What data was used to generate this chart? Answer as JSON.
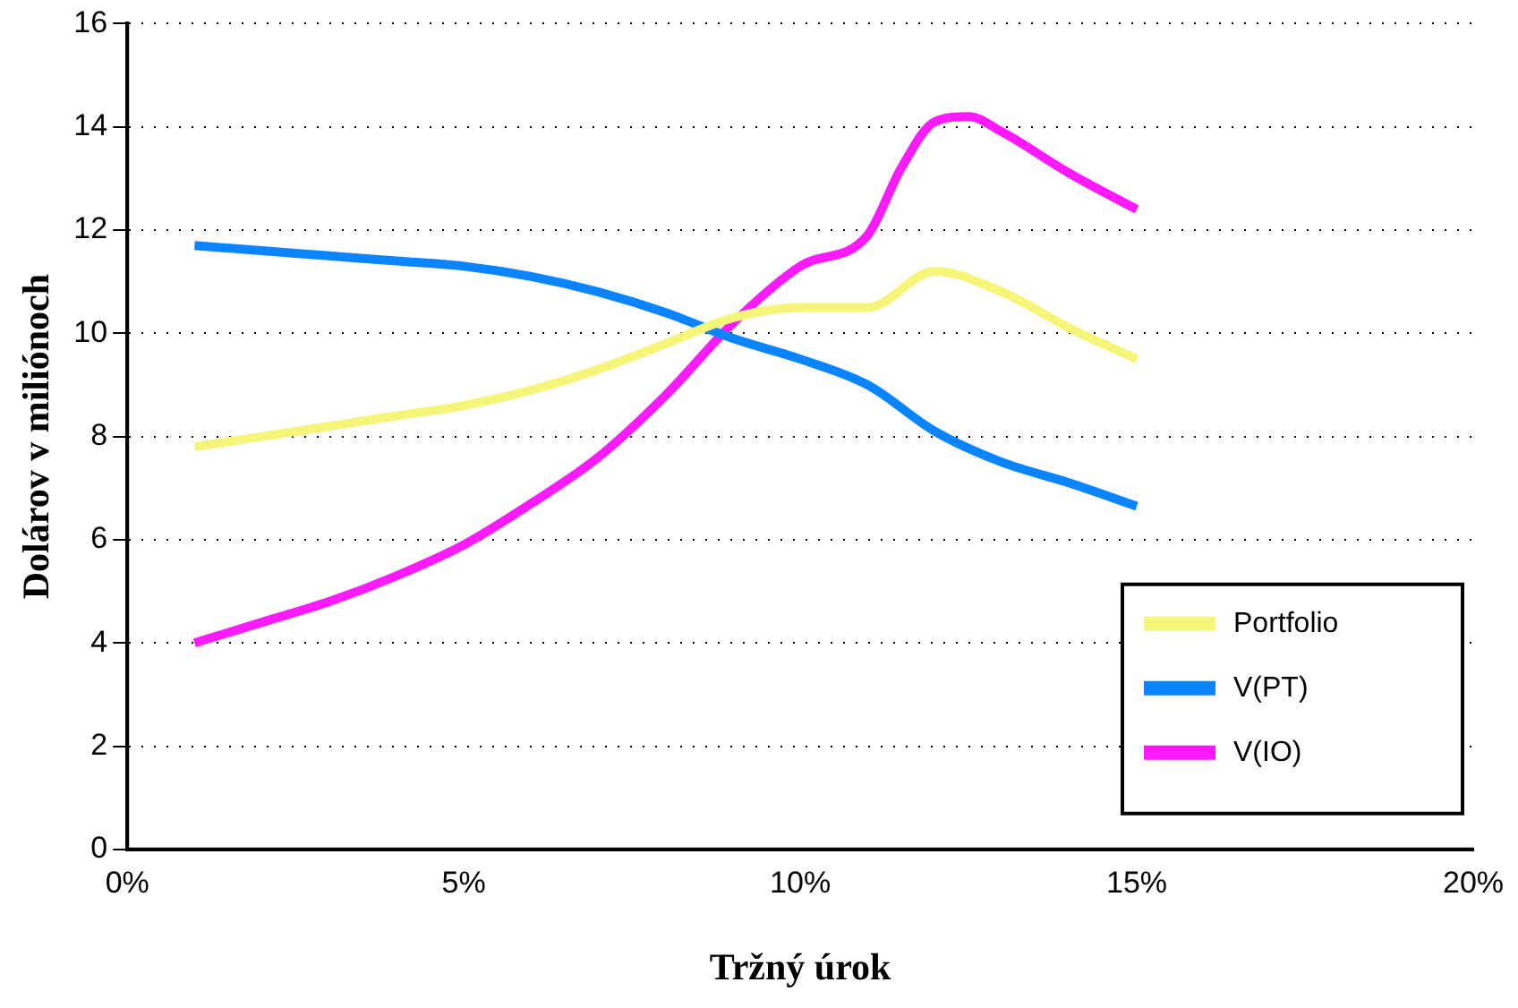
{
  "chart_data": {
    "type": "line",
    "xlabel": "Tržný úrok",
    "ylabel": "Dolárov v miliónoch",
    "xlim": [
      0,
      20
    ],
    "xticks": [
      {
        "value": 0,
        "label": "0%"
      },
      {
        "value": 5,
        "label": "5%"
      },
      {
        "value": 10,
        "label": "10%"
      },
      {
        "value": 15,
        "label": "15%"
      },
      {
        "value": 20,
        "label": "20%"
      }
    ],
    "ylim": [
      0,
      16
    ],
    "yticks": [
      0,
      2,
      4,
      6,
      8,
      10,
      12,
      14,
      16
    ],
    "grid": "y",
    "legend": "bottom right",
    "marker": "none",
    "line_style": "solid",
    "series": [
      {
        "name": "Portfolio",
        "color": "#f5f57a",
        "x": [
          1,
          2,
          3,
          4,
          5,
          6,
          7,
          8,
          9,
          10,
          11,
          12,
          13,
          14,
          15
        ],
        "values": [
          7.8,
          8.0,
          8.2,
          8.4,
          8.6,
          8.9,
          9.3,
          9.8,
          10.3,
          10.5,
          10.5,
          11.2,
          10.8,
          10.1,
          9.5
        ]
      },
      {
        "name": "V(PT)",
        "color": "#0a84ff",
        "x": [
          1,
          2,
          3,
          4,
          5,
          6,
          7,
          8,
          9,
          10,
          11,
          12,
          13,
          14,
          15
        ],
        "values": [
          11.7,
          11.6,
          11.5,
          11.4,
          11.3,
          11.1,
          10.8,
          10.4,
          9.9,
          9.5,
          9.0,
          8.1,
          7.5,
          7.1,
          6.65
        ]
      },
      {
        "name": "V(IO)",
        "color": "#ff1aff",
        "x": [
          1,
          2,
          3,
          4,
          5,
          6,
          7,
          8,
          9,
          10,
          11,
          11.5,
          12,
          12.5,
          13,
          14,
          15
        ],
        "values": [
          4.0,
          4.4,
          4.8,
          5.3,
          5.9,
          6.7,
          7.6,
          8.8,
          10.2,
          11.3,
          11.9,
          13.2,
          14.1,
          14.2,
          13.9,
          13.1,
          12.4
        ]
      }
    ]
  }
}
